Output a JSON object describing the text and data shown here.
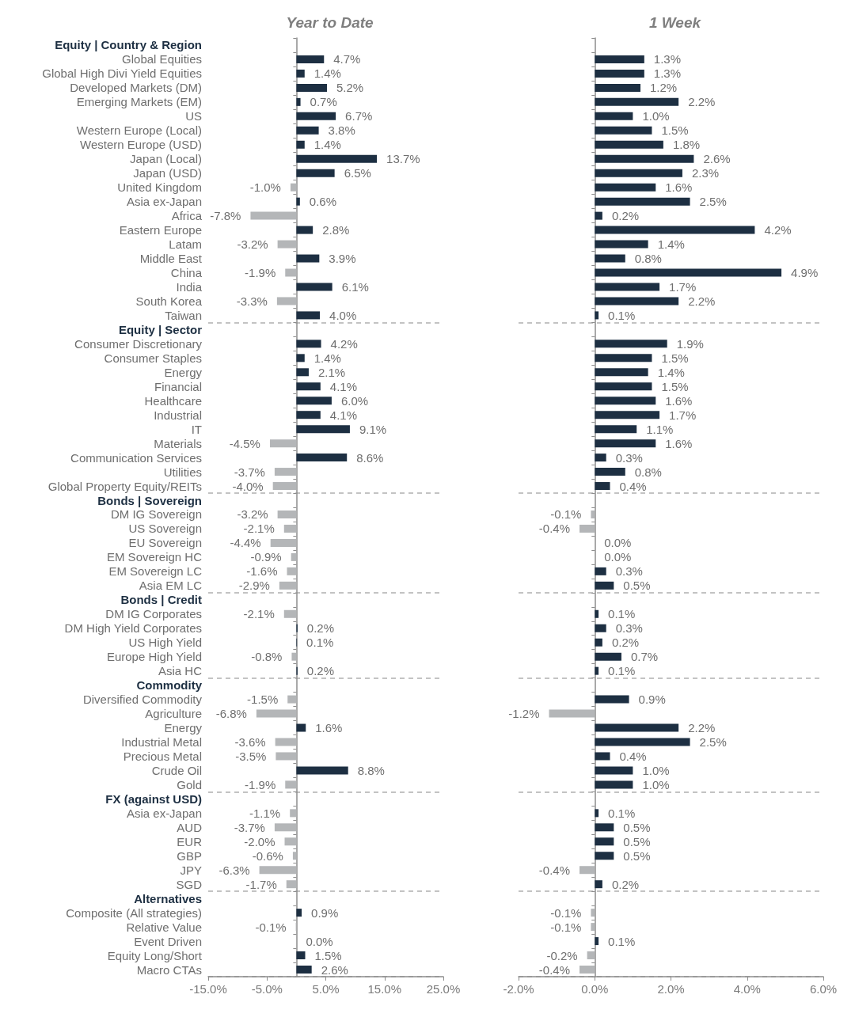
{
  "chart_data": [
    {
      "type": "bar",
      "orientation": "horizontal",
      "title": "Year to Date",
      "categories": [
        "Equity | Country & Region",
        "Global Equities",
        "Global High Divi Yield Equities",
        "Developed Markets (DM)",
        "Emerging Markets (EM)",
        "US",
        "Western Europe (Local)",
        "Western Europe (USD)",
        "Japan (Local)",
        "Japan (USD)",
        "United Kingdom",
        "Asia ex-Japan",
        "Africa",
        "Eastern Europe",
        "Latam",
        "Middle East",
        "China",
        "India",
        "South Korea",
        "Taiwan",
        "Equity | Sector",
        "Consumer Discretionary",
        "Consumer Staples",
        "Energy",
        "Financial",
        "Healthcare",
        "Industrial",
        "IT",
        "Materials",
        "Communication Services",
        "Utilities",
        "Global Property Equity/REITs",
        "Bonds | Sovereign",
        "DM IG Sovereign",
        "US Sovereign",
        "EU Sovereign",
        "EM Sovereign HC",
        "EM Sovereign LC",
        "Asia EM LC",
        "Bonds | Credit",
        "DM IG Corporates",
        "DM High Yield Corporates",
        "US High Yield",
        "Europe High Yield",
        "Asia HC",
        "Commodity",
        "Diversified Commodity",
        "Agriculture",
        "Energy",
        "Industrial Metal",
        "Precious Metal",
        "Crude Oil",
        "Gold",
        "FX (against USD)",
        "Asia ex-Japan",
        "AUD",
        "EUR",
        "GBP",
        "JPY",
        "SGD",
        "Alternatives",
        "Composite (All strategies)",
        "Relative Value",
        "Event Driven",
        "Equity Long/Short",
        "Macro CTAs"
      ],
      "values": [
        null,
        4.7,
        1.4,
        5.2,
        0.7,
        6.7,
        3.8,
        1.4,
        13.7,
        6.5,
        -1.0,
        0.6,
        -7.8,
        2.8,
        -3.2,
        3.9,
        -1.9,
        6.1,
        -3.3,
        4.0,
        null,
        4.2,
        1.4,
        2.1,
        4.1,
        6.0,
        4.1,
        9.1,
        -4.5,
        8.6,
        -3.7,
        -4.0,
        null,
        -3.2,
        -2.1,
        -4.4,
        -0.9,
        -1.6,
        -2.9,
        null,
        -2.1,
        0.2,
        0.1,
        -0.8,
        0.2,
        null,
        -1.5,
        -6.8,
        1.6,
        -3.6,
        -3.5,
        8.8,
        -1.9,
        null,
        -1.1,
        -3.7,
        -2.0,
        -0.6,
        -6.3,
        -1.7,
        null,
        0.9,
        -0.1,
        0.0,
        1.5,
        2.6
      ],
      "value_labels": [
        null,
        "4.7%",
        "1.4%",
        "5.2%",
        "0.7%",
        "6.7%",
        "3.8%",
        "1.4%",
        "13.7%",
        "6.5%",
        "-1.0%",
        "0.6%",
        "-7.8%",
        "2.8%",
        "-3.2%",
        "3.9%",
        "-1.9%",
        "6.1%",
        "-3.3%",
        "4.0%",
        null,
        "4.2%",
        "1.4%",
        "2.1%",
        "4.1%",
        "6.0%",
        "4.1%",
        "9.1%",
        "-4.5%",
        "8.6%",
        "-3.7%",
        "-4.0%",
        null,
        "-3.2%",
        "-2.1%",
        "-4.4%",
        "-0.9%",
        "-1.6%",
        "-2.9%",
        null,
        "-2.1%",
        "0.2%",
        "0.1%",
        "-0.8%",
        "0.2%",
        null,
        "-1.5%",
        "-6.8%",
        "1.6%",
        "-3.6%",
        "-3.5%",
        "8.8%",
        "-1.9%",
        null,
        "-1.1%",
        "-3.7%",
        "-2.0%",
        "-0.6%",
        "-6.3%",
        "-1.7%",
        null,
        "0.9%",
        "-0.1%",
        "0.0%",
        "1.5%",
        "2.6%"
      ],
      "colors": [
        null,
        "#1d2f42",
        "#1d2f42",
        "#1d2f42",
        "#1d2f42",
        "#1d2f42",
        "#1d2f42",
        "#1d2f42",
        "#1d2f42",
        "#1d2f42",
        "#b4b6b8",
        "#1d2f42",
        "#b4b6b8",
        "#1d2f42",
        "#b4b6b8",
        "#1d2f42",
        "#b4b6b8",
        "#1d2f42",
        "#b4b6b8",
        "#1d2f42",
        null,
        "#1d2f42",
        "#1d2f42",
        "#1d2f42",
        "#1d2f42",
        "#1d2f42",
        "#1d2f42",
        "#1d2f42",
        "#b4b6b8",
        "#1d2f42",
        "#b4b6b8",
        "#b4b6b8",
        null,
        "#b4b6b8",
        "#b4b6b8",
        "#b4b6b8",
        "#b4b6b8",
        "#b4b6b8",
        "#b4b6b8",
        null,
        "#b4b6b8",
        "#1d2f42",
        "#1d2f42",
        "#b4b6b8",
        "#1d2f42",
        null,
        "#b4b6b8",
        "#b4b6b8",
        "#1d2f42",
        "#b4b6b8",
        "#b4b6b8",
        "#1d2f42",
        "#b4b6b8",
        null,
        "#b4b6b8",
        "#b4b6b8",
        "#b4b6b8",
        "#b4b6b8",
        "#b4b6b8",
        "#b4b6b8",
        null,
        "#1d2f42",
        "#b4b6b8",
        "#1d2f42",
        "#1d2f42",
        "#1d2f42"
      ],
      "xlim": [
        -15,
        25
      ],
      "xticks": [
        {
          "value": -15,
          "label": "-15.0%"
        },
        {
          "value": -5,
          "label": "-5.0%"
        },
        {
          "value": 5,
          "label": "5.0%"
        },
        {
          "value": 15,
          "label": "15.0%"
        },
        {
          "value": 25,
          "label": "25.0%"
        }
      ]
    },
    {
      "type": "bar",
      "orientation": "horizontal",
      "title": "1 Week",
      "categories": [
        null,
        null,
        null,
        null,
        null,
        null,
        null,
        null,
        null,
        null,
        null,
        null,
        null,
        null,
        null,
        null,
        null,
        null,
        null,
        null,
        null,
        null,
        null,
        null,
        null,
        null,
        null,
        null,
        null,
        null,
        null,
        null,
        null,
        null,
        null,
        null,
        null,
        null,
        null,
        null,
        null,
        null,
        null,
        null,
        null,
        null,
        null,
        null,
        null,
        null,
        null,
        null,
        null,
        null,
        null,
        null,
        null,
        null,
        null,
        null,
        null,
        null,
        null,
        null,
        null,
        null
      ],
      "values": [
        null,
        1.3,
        1.3,
        1.2,
        2.2,
        1.0,
        1.5,
        1.8,
        2.6,
        2.3,
        1.6,
        2.5,
        0.2,
        4.2,
        1.4,
        0.8,
        4.9,
        1.7,
        2.2,
        0.1,
        null,
        1.9,
        1.5,
        1.4,
        1.5,
        1.6,
        1.7,
        1.1,
        1.6,
        0.3,
        0.8,
        0.4,
        null,
        -0.1,
        -0.4,
        0.0,
        0.0,
        0.3,
        0.5,
        null,
        0.1,
        0.3,
        0.2,
        0.7,
        0.1,
        null,
        0.9,
        -1.2,
        2.2,
        2.5,
        0.4,
        1.0,
        1.0,
        null,
        0.1,
        0.5,
        0.5,
        0.5,
        -0.4,
        0.2,
        null,
        -0.1,
        -0.1,
        0.1,
        -0.2,
        -0.4
      ],
      "value_labels": [
        null,
        "1.3%",
        "1.3%",
        "1.2%",
        "2.2%",
        "1.0%",
        "1.5%",
        "1.8%",
        "2.6%",
        "2.3%",
        "1.6%",
        "2.5%",
        "0.2%",
        "4.2%",
        "1.4%",
        "0.8%",
        "4.9%",
        "1.7%",
        "2.2%",
        "0.1%",
        null,
        "1.9%",
        "1.5%",
        "1.4%",
        "1.5%",
        "1.6%",
        "1.7%",
        "1.1%",
        "1.6%",
        "0.3%",
        "0.8%",
        "0.4%",
        null,
        "-0.1%",
        "-0.4%",
        "0.0%",
        "0.0%",
        "0.3%",
        "0.5%",
        null,
        "0.1%",
        "0.3%",
        "0.2%",
        "0.7%",
        "0.1%",
        null,
        "0.9%",
        "-1.2%",
        "2.2%",
        "2.5%",
        "0.4%",
        "1.0%",
        "1.0%",
        null,
        "0.1%",
        "0.5%",
        "0.5%",
        "0.5%",
        "-0.4%",
        "0.2%",
        null,
        "-0.1%",
        "-0.1%",
        "0.1%",
        "-0.2%",
        "-0.4%"
      ],
      "colors": [
        null,
        "#1d2f42",
        "#1d2f42",
        "#1d2f42",
        "#1d2f42",
        "#1d2f42",
        "#1d2f42",
        "#1d2f42",
        "#1d2f42",
        "#1d2f42",
        "#1d2f42",
        "#1d2f42",
        "#1d2f42",
        "#1d2f42",
        "#1d2f42",
        "#1d2f42",
        "#1d2f42",
        "#1d2f42",
        "#1d2f42",
        "#1d2f42",
        null,
        "#1d2f42",
        "#1d2f42",
        "#1d2f42",
        "#1d2f42",
        "#1d2f42",
        "#1d2f42",
        "#1d2f42",
        "#1d2f42",
        "#1d2f42",
        "#1d2f42",
        "#1d2f42",
        null,
        "#b4b6b8",
        "#b4b6b8",
        "#1d2f42",
        "#1d2f42",
        "#1d2f42",
        "#1d2f42",
        null,
        "#1d2f42",
        "#1d2f42",
        "#1d2f42",
        "#1d2f42",
        "#1d2f42",
        null,
        "#1d2f42",
        "#b4b6b8",
        "#1d2f42",
        "#1d2f42",
        "#1d2f42",
        "#1d2f42",
        "#1d2f42",
        null,
        "#1d2f42",
        "#1d2f42",
        "#1d2f42",
        "#1d2f42",
        "#b4b6b8",
        "#1d2f42",
        null,
        "#b4b6b8",
        "#b4b6b8",
        "#1d2f42",
        "#b4b6b8",
        "#b4b6b8"
      ],
      "xlim": [
        -2,
        6
      ],
      "xticks": [
        {
          "value": -2,
          "label": "-2.0%"
        },
        {
          "value": 0,
          "label": "0.0%"
        },
        {
          "value": 2,
          "label": "2.0%"
        },
        {
          "value": 4,
          "label": "4.0%"
        },
        {
          "value": 6,
          "label": "6.0%"
        }
      ]
    }
  ]
}
